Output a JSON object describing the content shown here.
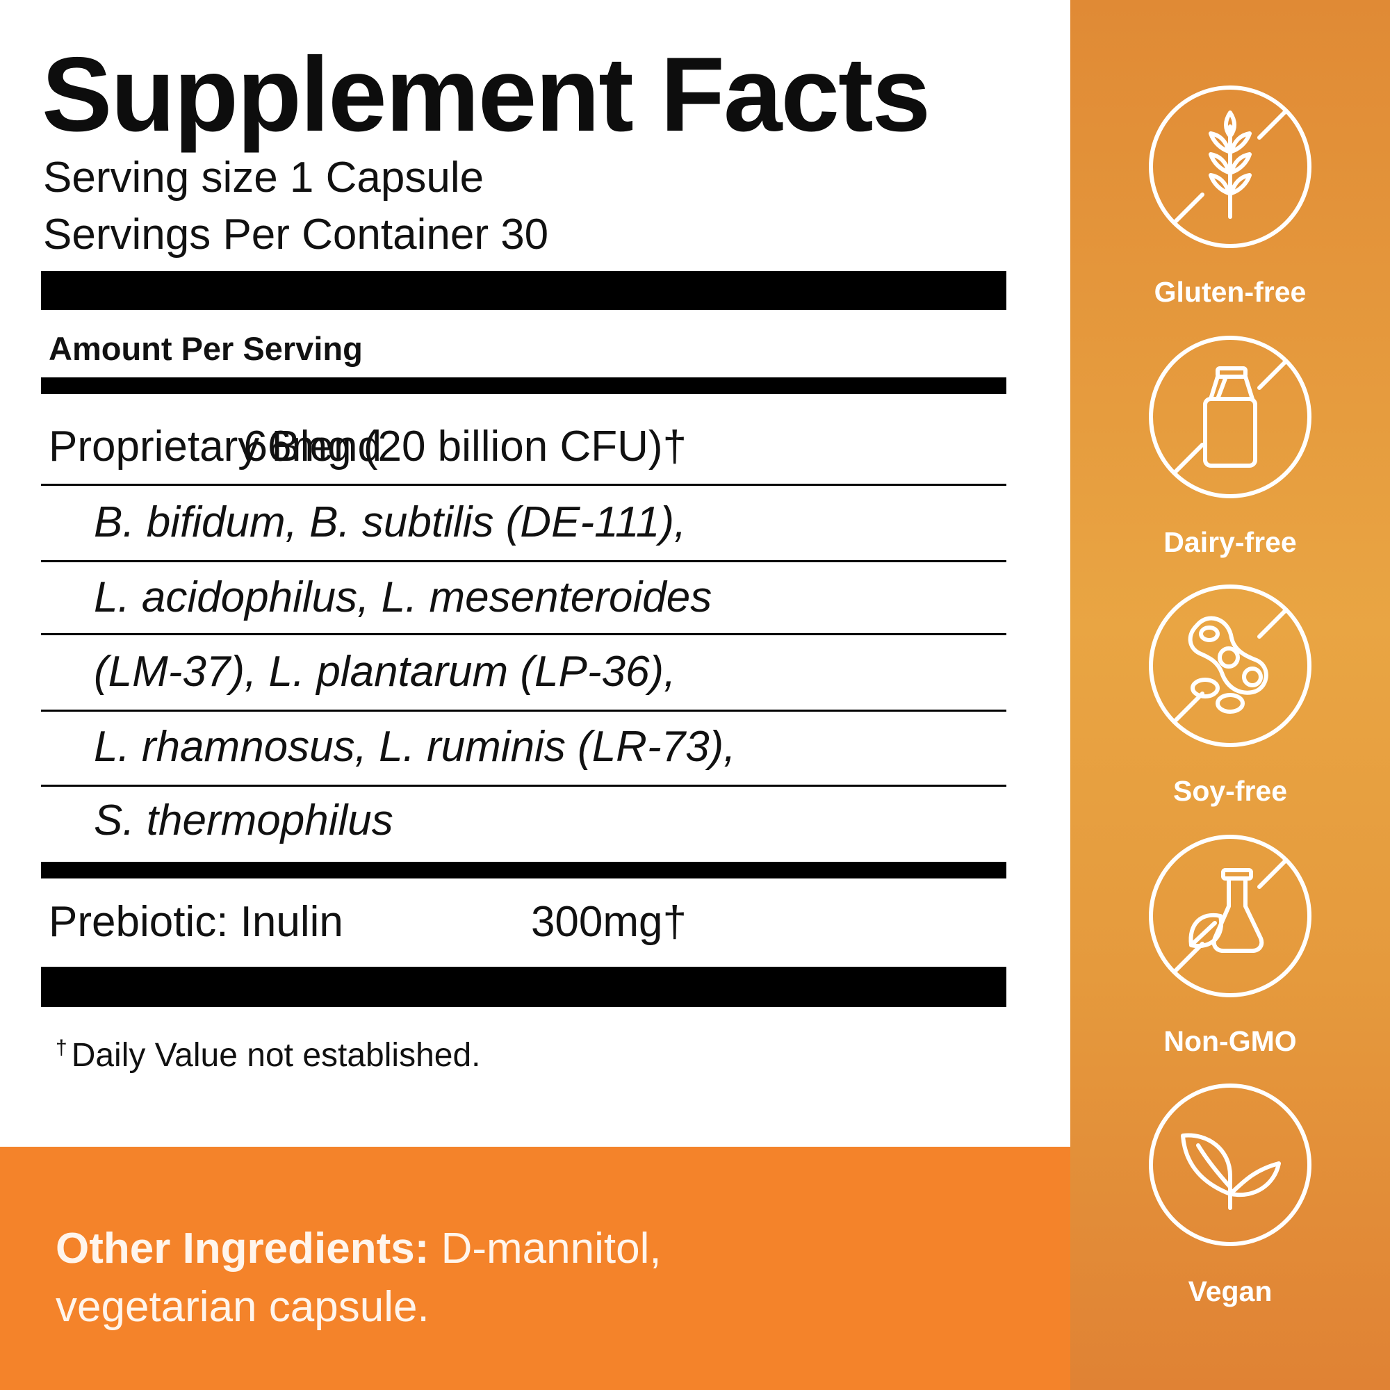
{
  "facts": {
    "title": "Supplement Facts",
    "serving_size": "Serving size 1 Capsule",
    "servings_per_container": "Servings Per Container 30",
    "amount_per_serving": "Amount Per Serving",
    "blend_name": "Proprietary Blend",
    "blend_amount": "66mg (20 billion CFU)†",
    "strains": [
      "B. bifidum, B. subtilis (DE-111),",
      "L. acidophilus, L. mesenteroides",
      "(LM-37), L. plantarum (LP-36),",
      "L. rhamnosus, L. ruminis (LR-73),",
      "S. thermophilus"
    ],
    "prebiotic_name": "Prebiotic: Inulin",
    "prebiotic_amount": "300mg†",
    "footnote_mark": "†",
    "footnote": "Daily Value not established."
  },
  "other_ingredients": {
    "label": "Other Ingredients:",
    "text": " D-mannitol, vegetarian capsule."
  },
  "badges": [
    {
      "label": "Gluten-free",
      "icon": "wheat-crossed-icon"
    },
    {
      "label": "Dairy-free",
      "icon": "milk-carton-crossed-icon"
    },
    {
      "label": "Soy-free",
      "icon": "soybean-crossed-icon"
    },
    {
      "label": "Non-GMO",
      "icon": "flask-leaf-crossed-icon"
    },
    {
      "label": "Vegan",
      "icon": "leaves-icon"
    }
  ],
  "colors": {
    "orange_panel": "#f4832a",
    "sidebar_orange": "#e59a3d",
    "text_black": "#111111",
    "white": "#ffffff"
  }
}
